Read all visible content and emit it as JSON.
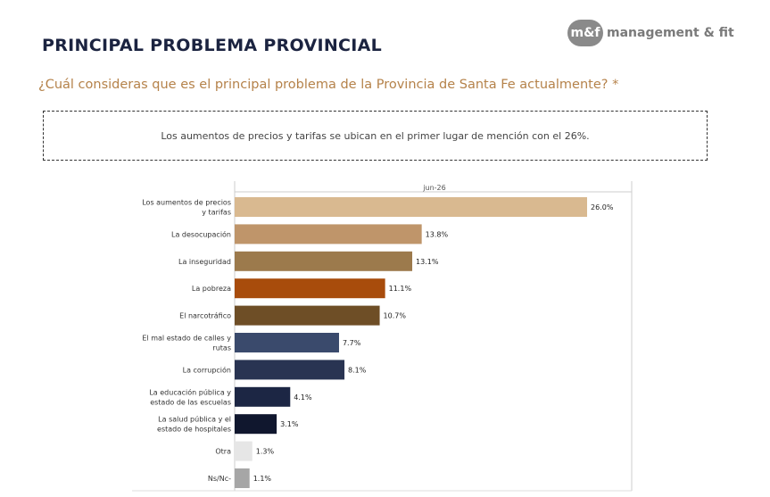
{
  "header": {
    "title": "PRINCIPAL PROBLEMA PROVINCIAL",
    "logo_mark": "m&f",
    "logo_text": "management & fit"
  },
  "question": "¿Cuál consideras que es el principal problema de la Provincia de Santa Fe actualmente? *",
  "note": "Los aumentos de precios y tarifas se ubican en el primer lugar de mención con el 26%.",
  "chart_data": {
    "type": "bar",
    "orientation": "horizontal",
    "column_label": "jun-26",
    "categories": [
      [
        "Los aumentos de precios",
        "y tarifas"
      ],
      [
        "La desocupación"
      ],
      [
        "La inseguridad"
      ],
      [
        "La pobreza"
      ],
      [
        "El narcotráfico"
      ],
      [
        "El mal estado de calles y",
        "rutas"
      ],
      [
        "La corrupción"
      ],
      [
        "La educación pública y",
        "estado de las escuelas"
      ],
      [
        "La salud pública y el",
        "estado de hospitales"
      ],
      [
        "Otra"
      ],
      [
        "Ns/Nc-"
      ]
    ],
    "values": [
      26.0,
      13.8,
      13.1,
      11.1,
      10.7,
      7.7,
      8.1,
      4.1,
      3.1,
      1.3,
      1.1
    ],
    "value_labels": [
      "26.0%",
      "13.8%",
      "13.1%",
      "11.1%",
      "10.7%",
      "7.7%",
      "8.1%",
      "4.1%",
      "3.1%",
      "1.3%",
      "1.1%"
    ],
    "colors": [
      "#d9b990",
      "#bf956a",
      "#9c7a4c",
      "#a84c0c",
      "#6e4e26",
      "#3a4a6c",
      "#293452",
      "#1c2644",
      "#10172e",
      "#e6e6e6",
      "#a6a6a6"
    ],
    "xlim": [
      0,
      30
    ]
  }
}
